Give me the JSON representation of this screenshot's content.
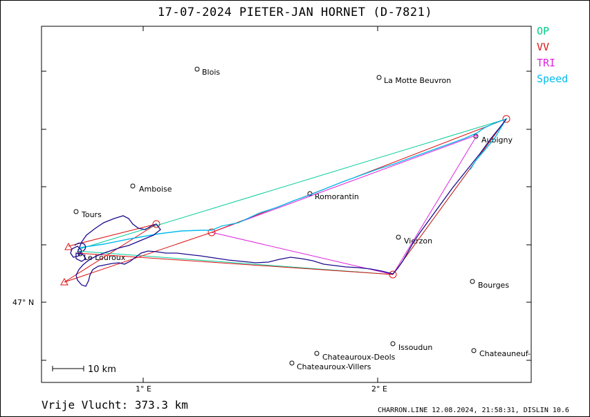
{
  "title": "17-07-2024   PIETER-JAN   HORNET (D-7821)",
  "legend": [
    {
      "label": "OP",
      "color": "#00cc88"
    },
    {
      "label": "VV",
      "color": "#dd1111"
    },
    {
      "label": "TRI",
      "color": "#dd22dd"
    },
    {
      "label": "Speed",
      "color": "#00bbee"
    }
  ],
  "axes": {
    "lon_labels": [
      "1° E",
      "2° E"
    ],
    "lat_labels": [
      "47° N"
    ]
  },
  "scale_bar": "10  km",
  "distance_text": "Vrije Vlucht:  373.3 km",
  "footer": "CHARRON.LINE 12.08.2024, 21:58:31, DISLIN 10.6",
  "places": [
    {
      "name": "Blois"
    },
    {
      "name": "La Motte Beuvron"
    },
    {
      "name": "Aubigny"
    },
    {
      "name": "Amboise"
    },
    {
      "name": "Tours"
    },
    {
      "name": "Romorantin"
    },
    {
      "name": "Vierzon"
    },
    {
      "name": "Le Louroux"
    },
    {
      "name": "Bourges"
    },
    {
      "name": "Issoudun"
    },
    {
      "name": "Chateauroux-Deols"
    },
    {
      "name": "Chateauroux-Villers"
    },
    {
      "name": "Chateauneuf-"
    }
  ],
  "colors": {
    "track": "#1a0a8c",
    "op": "#00cc99",
    "vv": "#dd1111",
    "tri": "#dd22dd",
    "speed": "#00bbee"
  }
}
